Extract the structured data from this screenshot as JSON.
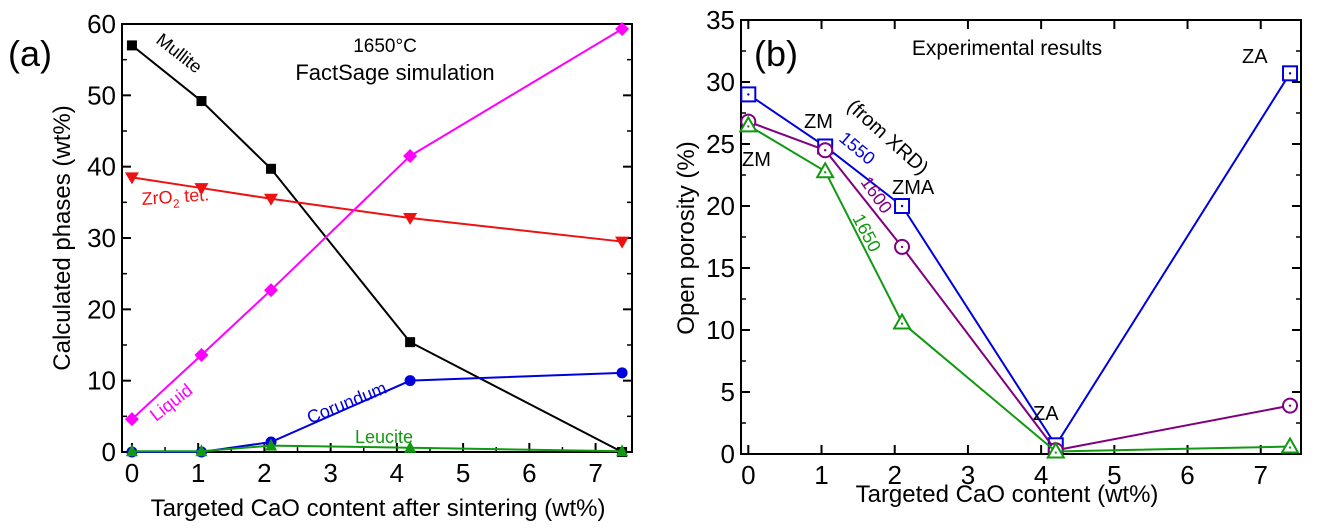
{
  "chart_data": [
    {
      "type": "line",
      "panel_label": "(a)",
      "title": "",
      "annotations": [
        "1650°C",
        "FactSage simulation"
      ],
      "xlabel": "Targeted CaO content after sintering (wt%)",
      "ylabel": "Calculated phases (wt%)",
      "xlim": [
        -0.15,
        7.55
      ],
      "ylim": [
        0,
        60
      ],
      "xticks": [
        0,
        1,
        2,
        3,
        4,
        5,
        6,
        7
      ],
      "yticks": [
        0,
        10,
        20,
        30,
        40,
        50,
        60
      ],
      "grid": false,
      "x": [
        0,
        1.05,
        2.1,
        4.2,
        7.4
      ],
      "series": [
        {
          "name": "Mullite",
          "label": "Mullite",
          "color": "#000000",
          "marker": "square",
          "values": [
            57.0,
            49.2,
            39.7,
            15.4,
            0.0
          ]
        },
        {
          "name": "ZrO2 tet.",
          "label": "ZrO2 tet.",
          "color": "#ee1111",
          "marker": "triangle-down",
          "values": [
            38.5,
            37.0,
            35.5,
            32.8,
            29.5
          ]
        },
        {
          "name": "Liquid",
          "label": "Liquid",
          "color": "#ff00ff",
          "marker": "diamond",
          "values": [
            4.6,
            13.6,
            22.7,
            41.5,
            59.3
          ]
        },
        {
          "name": "Corundum",
          "label": "Corundum",
          "color": "#0000dd",
          "marker": "circle",
          "values": [
            0.0,
            0.0,
            1.4,
            10.0,
            11.1
          ]
        },
        {
          "name": "Leucite",
          "label": "Leucite",
          "color": "#119911",
          "marker": "triangle-up",
          "values": [
            0.1,
            0.1,
            0.9,
            0.6,
            0.1
          ]
        }
      ]
    },
    {
      "type": "line",
      "panel_label": "(b)",
      "title": "Experimental results",
      "xlabel": "Targeted CaO content (wt%)",
      "ylabel": "Open porosity (%)",
      "xlim": [
        -0.1,
        7.55
      ],
      "ylim": [
        0,
        35
      ],
      "xticks": [
        0,
        1,
        2,
        3,
        4,
        5,
        6,
        7
      ],
      "yticks": [
        0,
        5,
        10,
        15,
        20,
        25,
        30,
        35
      ],
      "grid": false,
      "x": [
        0,
        1.05,
        2.1,
        4.2,
        7.4
      ],
      "series": [
        {
          "name": "1550",
          "label": "1550",
          "color": "#0000dd",
          "marker": "open-square",
          "values": [
            29.0,
            24.8,
            20.0,
            0.7,
            30.7
          ]
        },
        {
          "name": "1600",
          "label": "1600",
          "color": "#800080",
          "marker": "open-circle",
          "values": [
            26.8,
            24.5,
            16.7,
            0.3,
            3.9
          ]
        },
        {
          "name": "1650",
          "label": "1650",
          "color": "#119911",
          "marker": "open-triangle",
          "values": [
            26.5,
            22.8,
            10.6,
            0.2,
            0.6
          ]
        }
      ],
      "phase_annotations": [
        {
          "text": "ZM",
          "x": 0
        },
        {
          "text": "ZM",
          "x": 1.05
        },
        {
          "text": "ZMA",
          "x": 2.1
        },
        {
          "text": "ZA",
          "x": 4.2
        },
        {
          "text": "ZA",
          "x": 7.4
        }
      ],
      "note": "(from XRD)"
    }
  ]
}
